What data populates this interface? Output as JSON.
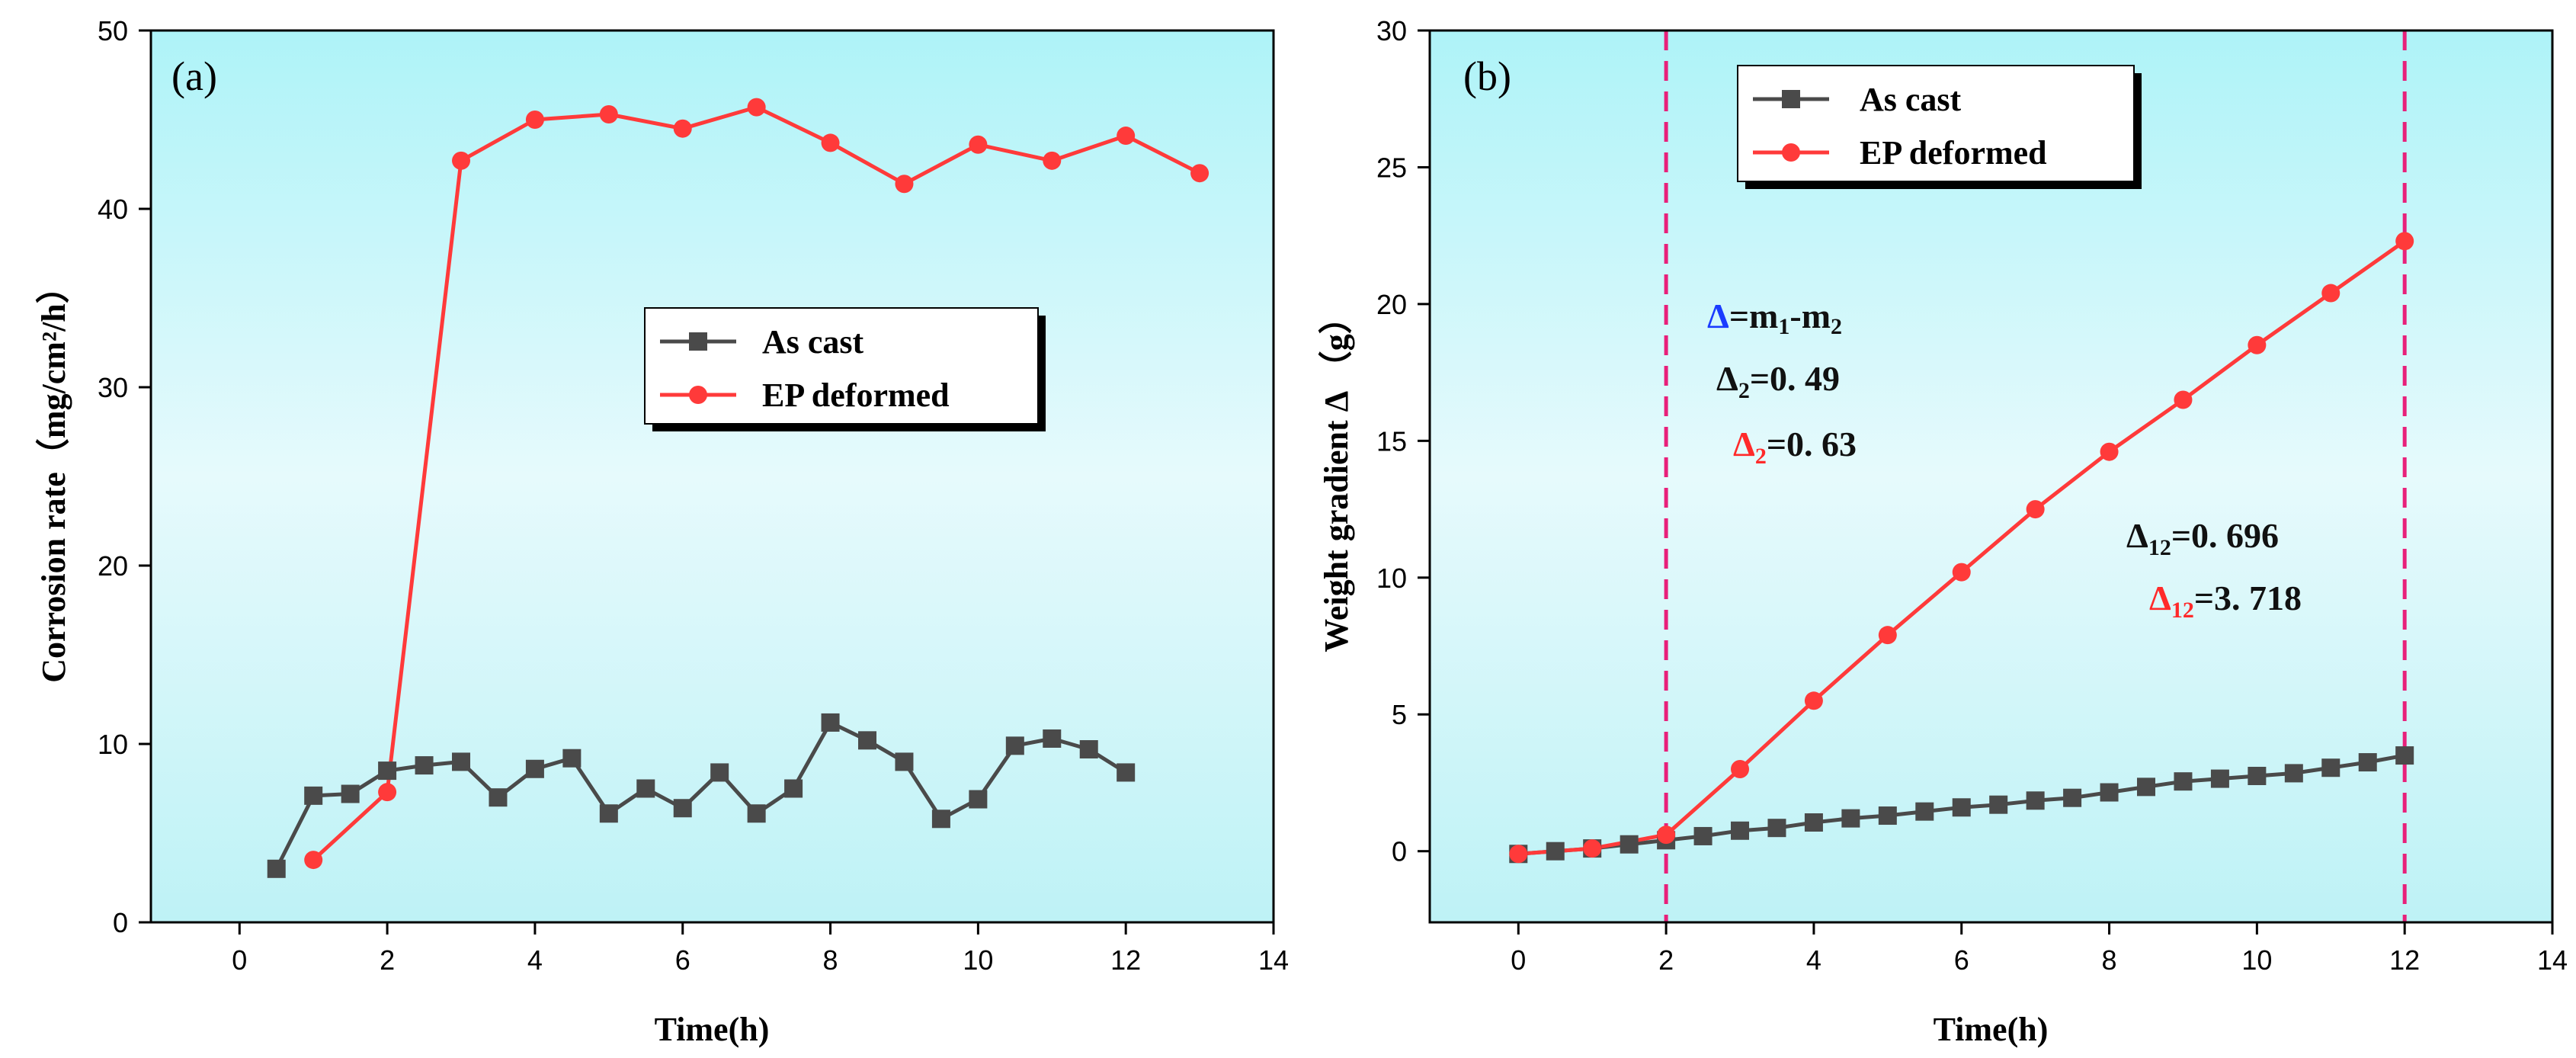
{
  "colors": {
    "as_cast": "#4a4a4a",
    "ep_deformed": "#ff3a3a",
    "bg_top": "#aef3f8",
    "bg_mid": "#e6fafc",
    "bg_bottom": "#bef2f6",
    "ref_line": "#e8207a",
    "delta_blue": "#1a3cff"
  },
  "chart_data": [
    {
      "type": "line",
      "panel_label": "(a)",
      "xlabel": "Time(h)",
      "ylabel": "Corrosion rate（mg/cm²/h）",
      "xlim": [
        -1.2,
        14
      ],
      "ylim": [
        0,
        50
      ],
      "xticks": [
        0,
        2,
        4,
        6,
        8,
        10,
        12,
        14
      ],
      "yticks": [
        0,
        10,
        20,
        30,
        40,
        50
      ],
      "legend": {
        "position": "center-right"
      },
      "series": [
        {
          "name": "As cast",
          "marker": "square",
          "x": [
            0.5,
            1,
            1.5,
            2,
            2.5,
            3,
            3.5,
            4,
            4.5,
            5,
            5.5,
            6,
            6.5,
            7,
            7.5,
            8,
            8.5,
            9,
            9.5,
            10,
            10.5,
            11,
            11.5,
            12
          ],
          "y": [
            3.0,
            7.1,
            7.2,
            8.5,
            8.8,
            9.0,
            7.0,
            8.6,
            9.2,
            6.1,
            7.5,
            6.4,
            8.4,
            6.1,
            7.5,
            11.2,
            10.2,
            9.0,
            5.8,
            6.9,
            9.9,
            10.3,
            9.7,
            8.4
          ]
        },
        {
          "name": "EP deformed",
          "marker": "circle",
          "x": [
            1,
            2,
            3,
            4,
            5,
            6,
            7,
            8,
            9,
            10,
            11,
            12,
            13
          ],
          "y": [
            3.5,
            7.3,
            42.7,
            45.0,
            45.3,
            44.5,
            45.7,
            43.7,
            41.4,
            43.6,
            42.7,
            44.1,
            42.0
          ]
        }
      ]
    },
    {
      "type": "line",
      "panel_label": "(b)",
      "xlabel": "Time(h)",
      "ylabel": "Weight gradient Δ （g）",
      "xlim": [
        -1.2,
        14
      ],
      "ylim": [
        -2.6,
        30
      ],
      "xticks": [
        0,
        2,
        4,
        6,
        8,
        10,
        12,
        14
      ],
      "yticks": [
        0,
        5,
        10,
        15,
        20,
        25,
        30
      ],
      "legend": {
        "position": "top-left"
      },
      "reference_lines_x": [
        2,
        12
      ],
      "series": [
        {
          "name": "As cast",
          "marker": "square",
          "x": [
            0,
            0.5,
            1,
            1.5,
            2,
            2.5,
            3,
            3.5,
            4,
            4.5,
            5,
            5.5,
            6,
            6.5,
            7,
            7.5,
            8,
            8.5,
            9,
            9.5,
            10,
            10.5,
            11,
            11.5,
            12
          ],
          "y": [
            -0.1,
            0.0,
            0.1,
            0.25,
            0.4,
            0.55,
            0.75,
            0.85,
            1.05,
            1.2,
            1.3,
            1.45,
            1.6,
            1.7,
            1.85,
            1.95,
            2.15,
            2.35,
            2.55,
            2.65,
            2.75,
            2.85,
            3.05,
            3.25,
            3.5
          ]
        },
        {
          "name": "EP deformed",
          "marker": "circle",
          "x": [
            0,
            1,
            2,
            3,
            4,
            5,
            6,
            7,
            8,
            9,
            10,
            11,
            12
          ],
          "y": [
            -0.1,
            0.1,
            0.6,
            3.0,
            5.5,
            7.9,
            10.2,
            12.5,
            14.6,
            16.5,
            18.5,
            20.4,
            22.3
          ]
        }
      ],
      "annotations": {
        "definition": {
          "delta": "Δ",
          "rest": "=m",
          "sub1": "1",
          "minus": "-m",
          "sub2": "2"
        },
        "as_cast_2": {
          "delta": "Δ",
          "sub": "2",
          "value": "=0. 49"
        },
        "ep_2": {
          "delta": "Δ",
          "sub": "2",
          "value": "=0. 63"
        },
        "as_cast_12": {
          "delta": "Δ",
          "sub": "12",
          "value": "=0. 696"
        },
        "ep_12": {
          "delta": "Δ",
          "sub": "12",
          "value": "=3. 718"
        }
      }
    }
  ]
}
